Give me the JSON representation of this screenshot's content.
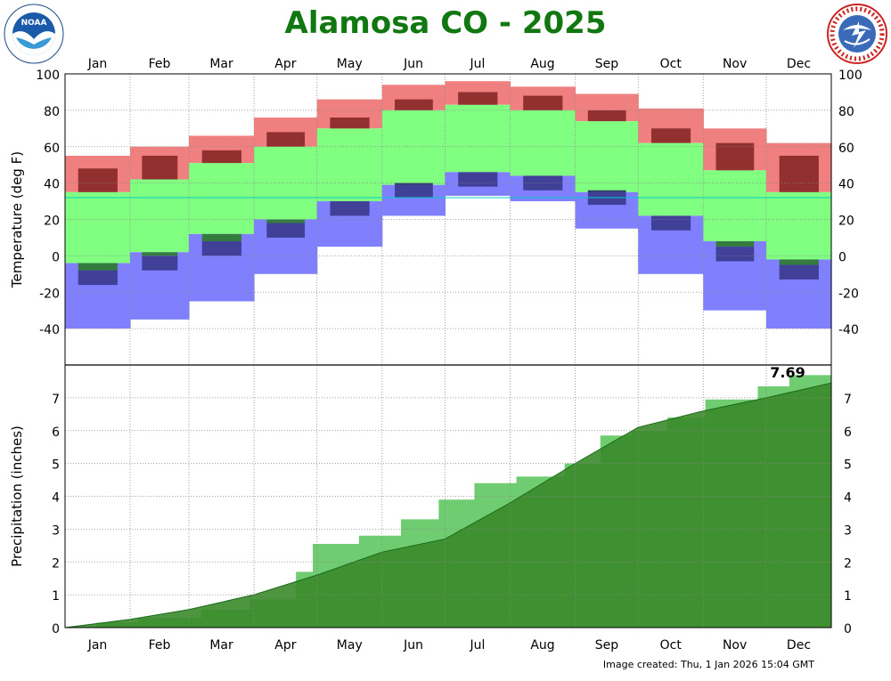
{
  "header": {
    "title": "Alamosa CO - 2025",
    "created": "Image created: Thu, 1 Jan 2026 15:04 GMT",
    "left_logo_icon": "noaa-logo-icon",
    "right_logo_icon": "nws-logo-icon",
    "right_logo_text": "NATIONAL WEATHER SERVICE"
  },
  "chart_data": [
    {
      "type": "bar",
      "ylabel": "Temperature (deg F)",
      "categories": [
        "Jan",
        "Feb",
        "Mar",
        "Apr",
        "May",
        "Jun",
        "Jul",
        "Aug",
        "Sep",
        "Oct",
        "Nov",
        "Dec"
      ],
      "ylim": [
        -60,
        100
      ],
      "yticks": [
        100,
        80,
        60,
        40,
        20,
        0,
        -20,
        -40
      ],
      "grid": true,
      "freezing_line": 32,
      "series": [
        {
          "role": "record_high",
          "color": "#f08080",
          "values": [
            55,
            60,
            66,
            76,
            86,
            94,
            96,
            93,
            89,
            81,
            70,
            62
          ]
        },
        {
          "role": "normal_high",
          "color": "#80ff80",
          "values": [
            35,
            42,
            51,
            60,
            70,
            80,
            83,
            80,
            74,
            62,
            47,
            35
          ]
        },
        {
          "role": "normal_low",
          "color": "#2a7a2a",
          "values": [
            -4,
            2,
            12,
            20,
            30,
            39,
            46,
            44,
            35,
            22,
            8,
            -2
          ]
        },
        {
          "role": "record_low",
          "color": "#8080ff",
          "values": [
            -40,
            -35,
            -25,
            -10,
            5,
            22,
            33,
            30,
            15,
            -10,
            -30,
            -40
          ]
        },
        {
          "role": "actual_high",
          "color": "#7a1a1a",
          "values": [
            48,
            55,
            58,
            68,
            76,
            86,
            90,
            88,
            80,
            70,
            62,
            55
          ]
        },
        {
          "role": "actual_low",
          "color": "#303080",
          "values": [
            -8,
            0,
            8,
            18,
            30,
            40,
            46,
            44,
            36,
            22,
            5,
            -5
          ]
        }
      ]
    },
    {
      "type": "area",
      "ylabel": "Precipitation (inches)",
      "categories": [
        "Jan",
        "Feb",
        "Mar",
        "Apr",
        "May",
        "Jun",
        "Jul",
        "Aug",
        "Sep",
        "Oct",
        "Nov",
        "Dec"
      ],
      "ylim": [
        0,
        8
      ],
      "yticks": [
        0,
        1,
        2,
        3,
        4,
        5,
        6,
        7
      ],
      "grid": true,
      "total_label": "7.69",
      "series": [
        {
          "role": "normal_cumulative",
          "color": "#3a8a2a",
          "x": [
            0,
            31,
            59,
            90,
            120,
            151,
            181,
            212,
            243,
            273,
            304,
            334,
            365
          ],
          "values": [
            0,
            0.25,
            0.55,
            1.0,
            1.6,
            2.3,
            2.7,
            3.8,
            5.0,
            6.1,
            6.6,
            7.0,
            7.45
          ]
        },
        {
          "role": "actual_cumulative",
          "color": "#70cc70",
          "x": [
            0,
            15,
            35,
            65,
            88,
            110,
            118,
            140,
            160,
            178,
            195,
            215,
            238,
            255,
            270,
            287,
            305,
            330,
            345,
            365
          ],
          "values": [
            0,
            0.15,
            0.3,
            0.55,
            0.85,
            1.7,
            2.55,
            2.8,
            3.3,
            3.9,
            4.4,
            4.6,
            5.0,
            5.85,
            6.0,
            6.4,
            6.95,
            7.35,
            7.69,
            7.69
          ]
        }
      ]
    }
  ]
}
